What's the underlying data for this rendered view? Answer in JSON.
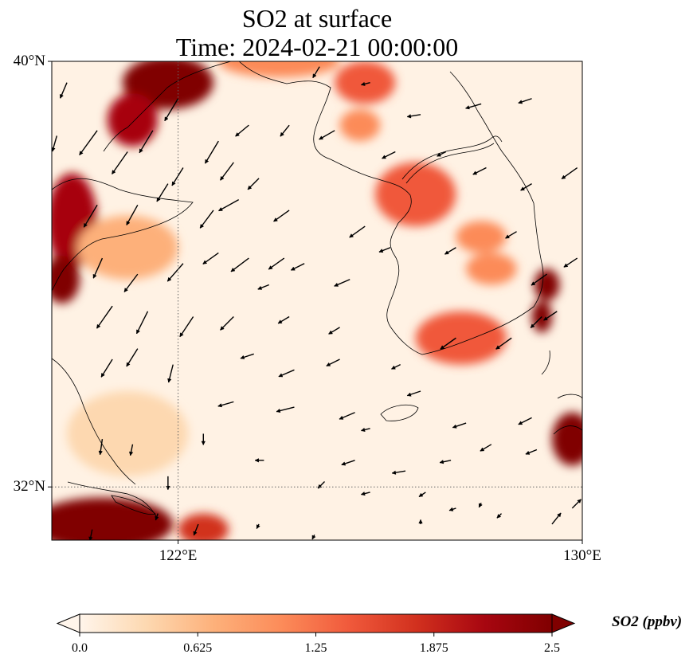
{
  "title": {
    "line1": "SO2 at surface",
    "line2": "Time: 2024-02-21 00:00:00"
  },
  "map": {
    "lon_range": [
      119.5,
      130.0
    ],
    "lat_range": [
      31.0,
      40.0
    ],
    "lat_ticks": [
      {
        "value": 40,
        "label": "40°N"
      },
      {
        "value": 32,
        "label": "32°N"
      }
    ],
    "lon_ticks": [
      {
        "value": 122,
        "label": "122°E"
      },
      {
        "value": 130,
        "label": "130°E"
      }
    ],
    "gridlines": [
      {
        "axis": "lon",
        "value": 122
      },
      {
        "axis": "lat",
        "value": 32
      }
    ],
    "colormap": [
      "#fff5eb",
      "#fdd8b0",
      "#fdb07a",
      "#fc8b59",
      "#f0593b",
      "#d1301e",
      "#a70610",
      "#800000"
    ],
    "background_color": "#fff2e4",
    "hotspots": [
      {
        "lon": 121.8,
        "lat": 39.6,
        "value": 3.0,
        "rx": 0.9,
        "ry": 0.5
      },
      {
        "lon": 121.1,
        "lat": 38.9,
        "value": 2.2,
        "rx": 0.5,
        "ry": 0.5
      },
      {
        "lon": 119.9,
        "lat": 37.0,
        "value": 2.3,
        "rx": 0.5,
        "ry": 0.9
      },
      {
        "lon": 119.7,
        "lat": 35.9,
        "value": 2.6,
        "rx": 0.35,
        "ry": 0.45
      },
      {
        "lon": 126.7,
        "lat": 37.5,
        "value": 3.0,
        "rx": 0.4,
        "ry": 0.3
      },
      {
        "lon": 126.7,
        "lat": 37.5,
        "value": 1.6,
        "rx": 0.8,
        "ry": 0.6
      },
      {
        "lon": 127.6,
        "lat": 34.8,
        "value": 3.0,
        "rx": 0.45,
        "ry": 0.25
      },
      {
        "lon": 127.6,
        "lat": 34.8,
        "value": 1.5,
        "rx": 0.9,
        "ry": 0.5
      },
      {
        "lon": 129.3,
        "lat": 35.8,
        "value": 2.4,
        "rx": 0.25,
        "ry": 0.3
      },
      {
        "lon": 129.2,
        "lat": 35.2,
        "value": 2.6,
        "rx": 0.2,
        "ry": 0.3
      },
      {
        "lon": 128.2,
        "lat": 36.1,
        "value": 1.0,
        "rx": 0.5,
        "ry": 0.3
      },
      {
        "lon": 128.0,
        "lat": 36.7,
        "value": 0.9,
        "rx": 0.5,
        "ry": 0.3
      },
      {
        "lon": 129.8,
        "lat": 32.9,
        "value": 2.6,
        "rx": 0.4,
        "ry": 0.5
      },
      {
        "lon": 120.5,
        "lat": 31.3,
        "value": 3.0,
        "rx": 1.4,
        "ry": 0.5
      },
      {
        "lon": 122.5,
        "lat": 31.2,
        "value": 1.8,
        "rx": 0.5,
        "ry": 0.3
      },
      {
        "lon": 125.7,
        "lat": 39.6,
        "value": 1.6,
        "rx": 0.6,
        "ry": 0.4
      },
      {
        "lon": 125.6,
        "lat": 38.8,
        "value": 1.0,
        "rx": 0.4,
        "ry": 0.3
      },
      {
        "lon": 124.0,
        "lat": 40.0,
        "value": 1.0,
        "rx": 1.2,
        "ry": 0.3
      },
      {
        "lon": 121.0,
        "lat": 36.5,
        "value": 0.6,
        "rx": 1.0,
        "ry": 0.6
      },
      {
        "lon": 121.0,
        "lat": 33.0,
        "value": 0.45,
        "rx": 1.2,
        "ry": 0.8
      }
    ],
    "wind_vectors": [
      [
        119.8,
        39.6,
        -0.3,
        -0.7
      ],
      [
        120.4,
        38.7,
        -0.8,
        -1.1
      ],
      [
        121.0,
        38.3,
        -0.7,
        -1.0
      ],
      [
        122.0,
        39.3,
        -0.6,
        -1.0
      ],
      [
        121.5,
        38.7,
        -0.6,
        -1.0
      ],
      [
        122.1,
        38.0,
        -0.5,
        -0.8
      ],
      [
        122.8,
        38.5,
        -0.6,
        -1.0
      ],
      [
        120.4,
        37.3,
        -0.6,
        -1.0
      ],
      [
        121.2,
        37.3,
        -0.5,
        -0.9
      ],
      [
        121.8,
        37.7,
        -0.5,
        -0.8
      ],
      [
        122.7,
        37.2,
        -0.6,
        -0.8
      ],
      [
        123.1,
        38.1,
        -0.6,
        -0.8
      ],
      [
        120.5,
        36.3,
        -0.4,
        -0.9
      ],
      [
        121.2,
        36.0,
        -0.6,
        -0.8
      ],
      [
        122.1,
        36.2,
        -0.7,
        -0.8
      ],
      [
        122.8,
        36.4,
        -0.7,
        -0.5
      ],
      [
        123.4,
        36.3,
        -0.8,
        -0.6
      ],
      [
        124.1,
        36.3,
        -0.7,
        -0.5
      ],
      [
        123.4,
        38.8,
        -0.6,
        -0.5
      ],
      [
        123.6,
        37.8,
        -0.5,
        -0.5
      ],
      [
        124.2,
        38.8,
        -0.4,
        -0.5
      ],
      [
        124.8,
        39.9,
        -0.3,
        -0.5
      ],
      [
        123.2,
        37.4,
        -0.9,
        -0.5
      ],
      [
        124.2,
        37.2,
        -0.7,
        -0.5
      ],
      [
        125.7,
        36.9,
        -0.7,
        -0.5
      ],
      [
        124.5,
        36.2,
        -0.6,
        -0.3
      ],
      [
        125.4,
        35.9,
        -0.7,
        -0.3
      ],
      [
        126.2,
        36.5,
        -0.5,
        -0.2
      ],
      [
        120.7,
        35.4,
        -0.7,
        -1.0
      ],
      [
        121.4,
        35.3,
        -0.5,
        -1.0
      ],
      [
        122.3,
        35.2,
        -0.6,
        -0.9
      ],
      [
        123.1,
        35.2,
        -0.6,
        -0.6
      ],
      [
        124.2,
        35.2,
        -0.5,
        -0.3
      ],
      [
        125.2,
        35.0,
        -0.5,
        -0.3
      ],
      [
        121.2,
        34.6,
        -0.5,
        -0.8
      ],
      [
        120.7,
        34.4,
        -0.5,
        -0.8
      ],
      [
        121.9,
        34.3,
        -0.2,
        -0.8
      ],
      [
        123.5,
        34.5,
        -0.6,
        -0.2
      ],
      [
        124.3,
        34.2,
        -0.7,
        -0.3
      ],
      [
        125.2,
        34.4,
        -0.6,
        -0.3
      ],
      [
        126.4,
        34.3,
        -0.4,
        -0.2
      ],
      [
        127.5,
        34.8,
        -0.7,
        -0.5
      ],
      [
        128.6,
        34.8,
        -0.7,
        -0.5
      ],
      [
        129.2,
        35.2,
        -0.5,
        -0.5
      ],
      [
        123.1,
        33.6,
        -0.7,
        -0.2
      ],
      [
        124.3,
        33.5,
        -0.8,
        -0.2
      ],
      [
        125.5,
        33.4,
        -0.7,
        -0.3
      ],
      [
        126.8,
        33.8,
        -0.6,
        -0.2
      ],
      [
        127.7,
        33.2,
        -0.6,
        -0.2
      ],
      [
        129.0,
        33.3,
        -0.6,
        -0.3
      ],
      [
        122.5,
        33.0,
        -0.0,
        -0.5
      ],
      [
        123.7,
        32.5,
        -0.4,
        -0.0
      ],
      [
        125.5,
        32.5,
        -0.6,
        -0.2
      ],
      [
        126.5,
        32.3,
        -0.6,
        -0.1
      ],
      [
        127.4,
        32.5,
        -0.5,
        -0.1
      ],
      [
        128.2,
        32.8,
        -0.5,
        -0.3
      ],
      [
        129.1,
        32.7,
        -0.5,
        -0.2
      ],
      [
        120.5,
        32.9,
        -0.1,
        -0.7
      ],
      [
        121.1,
        32.8,
        -0.1,
        -0.5
      ],
      [
        121.8,
        32.2,
        -0.0,
        -0.6
      ],
      [
        124.9,
        32.1,
        -0.3,
        -0.3
      ],
      [
        125.8,
        31.9,
        -0.4,
        -0.1
      ],
      [
        126.9,
        31.9,
        -0.3,
        -0.2
      ],
      [
        127.5,
        31.6,
        -0.3,
        -0.1
      ],
      [
        128.0,
        31.7,
        -0.1,
        -0.2
      ],
      [
        126.8,
        31.3,
        0.0,
        0.2
      ],
      [
        128.4,
        31.5,
        -0.2,
        -0.2
      ],
      [
        129.4,
        31.3,
        0.4,
        0.5
      ],
      [
        129.8,
        31.6,
        0.4,
        0.4
      ],
      [
        122.4,
        31.3,
        -0.2,
        -0.5
      ],
      [
        121.6,
        31.5,
        -0.1,
        -0.3
      ],
      [
        123.6,
        31.3,
        -0.1,
        -0.2
      ],
      [
        124.7,
        31.1,
        -0.1,
        -0.2
      ],
      [
        129.9,
        38.0,
        -0.7,
        -0.5
      ],
      [
        129.0,
        37.7,
        -0.5,
        -0.3
      ],
      [
        128.1,
        38.0,
        -0.6,
        -0.3
      ],
      [
        128.7,
        36.8,
        -0.5,
        -0.3
      ],
      [
        129.9,
        36.3,
        -0.6,
        -0.4
      ],
      [
        129.5,
        35.3,
        -0.6,
        -0.4
      ],
      [
        129.3,
        36.0,
        -0.7,
        -0.5
      ],
      [
        127.5,
        36.5,
        -0.5,
        -0.3
      ],
      [
        126.8,
        39.0,
        -0.6,
        -0.1
      ],
      [
        128.0,
        39.2,
        -0.7,
        -0.2
      ],
      [
        129.0,
        39.3,
        -0.6,
        -0.2
      ],
      [
        127.3,
        38.3,
        -0.4,
        -0.2
      ],
      [
        126.3,
        38.3,
        -0.6,
        -0.3
      ],
      [
        125.8,
        39.6,
        -0.4,
        -0.1
      ],
      [
        125.1,
        38.7,
        -0.7,
        -0.4
      ],
      [
        123.8,
        35.8,
        -0.5,
        -0.2
      ],
      [
        119.6,
        38.6,
        -0.2,
        -0.7
      ],
      [
        125.8,
        33.1,
        -0.4,
        -0.1
      ],
      [
        120.3,
        31.2,
        -0.1,
        -0.5
      ]
    ]
  },
  "colorbar": {
    "vmin": 0.0,
    "vmax": 2.5,
    "ticks": [
      {
        "value": 0.0,
        "label": "0.0"
      },
      {
        "value": 0.625,
        "label": "0.625"
      },
      {
        "value": 1.25,
        "label": "1.25"
      },
      {
        "value": 1.875,
        "label": "1.875"
      },
      {
        "value": 2.5,
        "label": "2.5"
      }
    ],
    "label": "SO2 (ppbv)"
  }
}
